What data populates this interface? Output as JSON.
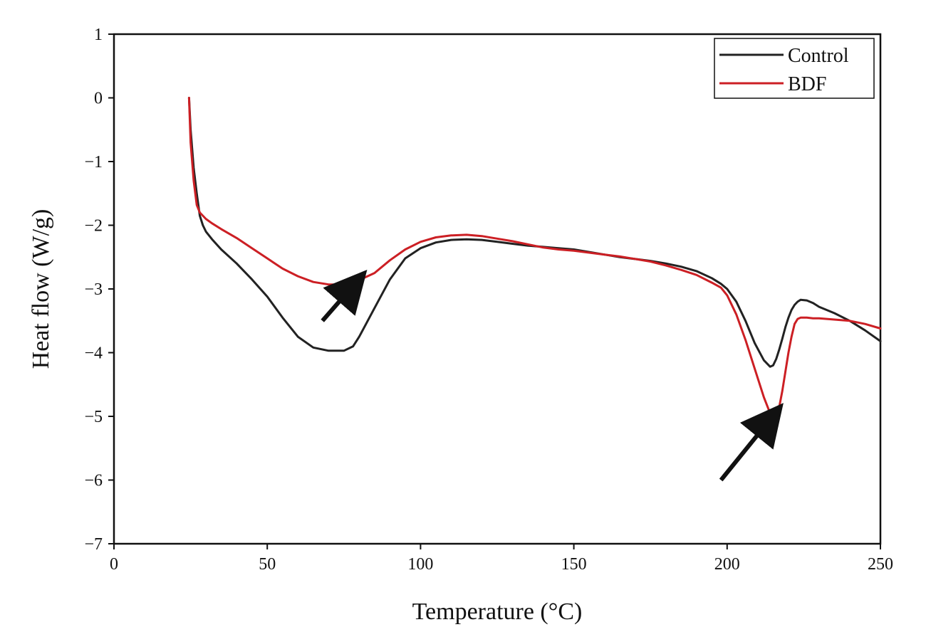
{
  "chart_data": {
    "type": "line",
    "title": "",
    "xlabel": "Temperature (°C)",
    "ylabel": "Heat flow (W/g)",
    "xlim": [
      0,
      250
    ],
    "ylim": [
      -7,
      1
    ],
    "xticks": [
      0,
      50,
      100,
      150,
      200,
      250
    ],
    "yticks": [
      1,
      0,
      -1,
      -2,
      -3,
      -4,
      -5,
      -6,
      -7
    ],
    "xtick_labels": [
      "0",
      "50",
      "100",
      "150",
      "200",
      "250"
    ],
    "ytick_labels": [
      "1",
      "0",
      "−1",
      "−2",
      "−3",
      "−4",
      "−5",
      "−6",
      "−7"
    ],
    "grid": false,
    "legend": "top-right",
    "series": [
      {
        "name": "Control",
        "color": "#222222",
        "x": [
          24.5,
          25,
          26,
          27,
          28,
          29,
          30,
          32,
          35,
          40,
          45,
          50,
          55,
          60,
          65,
          70,
          75,
          78,
          80,
          85,
          90,
          95,
          100,
          105,
          110,
          115,
          120,
          125,
          130,
          135,
          140,
          145,
          150,
          155,
          160,
          165,
          170,
          175,
          180,
          185,
          190,
          195,
          198,
          200,
          203,
          206,
          209,
          212,
          214,
          215,
          216,
          217,
          218,
          219,
          220,
          221,
          222,
          223,
          224,
          226,
          228,
          230,
          235,
          240,
          245,
          250
        ],
        "y": [
          0.0,
          -0.5,
          -1.1,
          -1.5,
          -1.85,
          -2.0,
          -2.1,
          -2.22,
          -2.38,
          -2.6,
          -2.85,
          -3.12,
          -3.45,
          -3.75,
          -3.92,
          -3.97,
          -3.97,
          -3.9,
          -3.75,
          -3.3,
          -2.85,
          -2.52,
          -2.36,
          -2.27,
          -2.23,
          -2.22,
          -2.23,
          -2.26,
          -2.29,
          -2.32,
          -2.34,
          -2.36,
          -2.38,
          -2.42,
          -2.46,
          -2.5,
          -2.53,
          -2.56,
          -2.6,
          -2.65,
          -2.72,
          -2.83,
          -2.92,
          -3.0,
          -3.2,
          -3.5,
          -3.85,
          -4.12,
          -4.22,
          -4.2,
          -4.1,
          -3.95,
          -3.78,
          -3.6,
          -3.45,
          -3.33,
          -3.25,
          -3.2,
          -3.17,
          -3.18,
          -3.22,
          -3.28,
          -3.38,
          -3.5,
          -3.65,
          -3.82
        ]
      },
      {
        "name": "BDF",
        "color": "#cc1f24",
        "x": [
          24.5,
          25,
          26,
          27,
          28,
          29,
          30,
          32,
          35,
          40,
          45,
          50,
          55,
          60,
          65,
          70,
          75,
          78,
          80,
          85,
          90,
          95,
          100,
          105,
          110,
          115,
          120,
          125,
          130,
          135,
          140,
          145,
          150,
          155,
          160,
          165,
          170,
          175,
          180,
          185,
          190,
          195,
          198,
          200,
          203,
          206,
          209,
          212,
          214,
          215,
          216,
          217,
          218,
          219,
          220,
          221,
          222,
          223,
          224,
          226,
          228,
          230,
          235,
          240,
          245,
          250
        ],
        "y": [
          0.0,
          -0.7,
          -1.3,
          -1.68,
          -1.8,
          -1.85,
          -1.9,
          -1.97,
          -2.06,
          -2.2,
          -2.36,
          -2.52,
          -2.68,
          -2.8,
          -2.89,
          -2.93,
          -2.93,
          -2.9,
          -2.86,
          -2.75,
          -2.55,
          -2.38,
          -2.26,
          -2.19,
          -2.16,
          -2.15,
          -2.17,
          -2.21,
          -2.25,
          -2.3,
          -2.35,
          -2.38,
          -2.4,
          -2.43,
          -2.46,
          -2.49,
          -2.53,
          -2.57,
          -2.63,
          -2.7,
          -2.78,
          -2.9,
          -2.98,
          -3.1,
          -3.4,
          -3.8,
          -4.25,
          -4.7,
          -4.95,
          -5.02,
          -5.0,
          -4.85,
          -4.6,
          -4.3,
          -4.0,
          -3.75,
          -3.55,
          -3.47,
          -3.45,
          -3.45,
          -3.46,
          -3.46,
          -3.48,
          -3.5,
          -3.55,
          -3.62
        ]
      }
    ],
    "annotations": [
      {
        "type": "arrow",
        "from": [
          68,
          -3.5
        ],
        "to": [
          78,
          -2.95
        ]
      },
      {
        "type": "arrow",
        "from": [
          198,
          -6.0
        ],
        "to": [
          214,
          -5.05
        ]
      }
    ]
  }
}
